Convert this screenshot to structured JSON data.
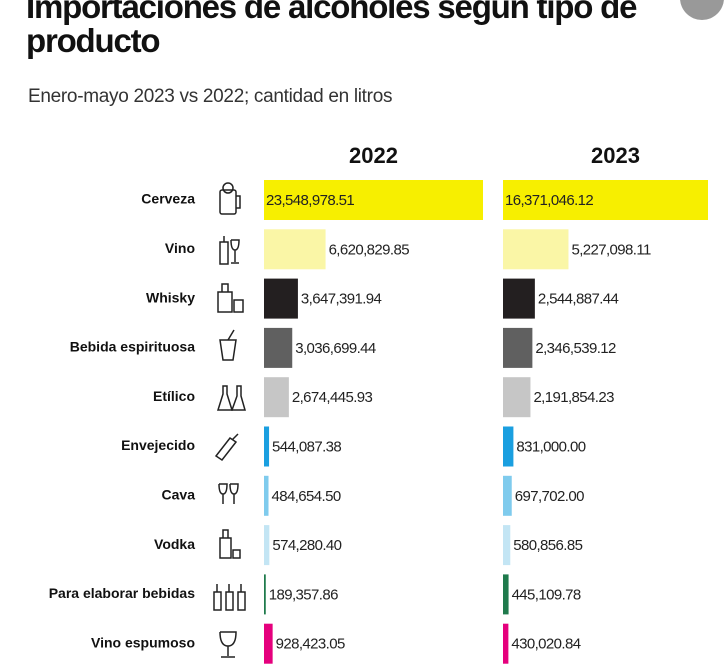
{
  "chart_data": {
    "type": "bar",
    "title": "Importaciones de alcoholes según tipo de producto",
    "subtitle": "Enero-mayo 2023 vs 2022; cantidad en litros",
    "categories": [
      "Cerveza",
      "Vino",
      "Whisky",
      "Bebida espirituosa",
      "Etílico",
      "Envejecido",
      "Cava",
      "Vodka",
      "Para elaborar bebidas",
      "Vino espumoso"
    ],
    "colors": [
      "#f7ef00",
      "#faf6a6",
      "#231f20",
      "#606060",
      "#c6c6c6",
      "#1a9fe0",
      "#7fcbed",
      "#c3e5f4",
      "#1f7a4c",
      "#e5007d"
    ],
    "series": [
      {
        "name": "2022",
        "values": [
          23548978.51,
          6620829.85,
          3647391.94,
          3036699.44,
          2674445.93,
          544087.38,
          484654.5,
          574280.4,
          189357.86,
          928423.05
        ],
        "value_labels": [
          "23,548,978.51",
          "6,620,829.85",
          "3,647,391.94",
          "3,036,699.44",
          "2,674,445.93",
          "544,087.38",
          "484,654.50",
          "574,280.40",
          "189,357.86",
          "928,423.05"
        ]
      },
      {
        "name": "2023",
        "values": [
          16371046.12,
          5227098.11,
          2544887.44,
          2346539.12,
          2191854.23,
          831000.0,
          697702.0,
          580856.85,
          445109.78,
          430020.84
        ],
        "value_labels": [
          "16,371,046.12",
          "5,227,098.11",
          "2,544,887.44",
          "2,346,539.12",
          "2,191,854.23",
          "831,000.00",
          "697,702.00",
          "580,856.85",
          "445,109.78",
          "430,020.84"
        ]
      }
    ]
  }
}
